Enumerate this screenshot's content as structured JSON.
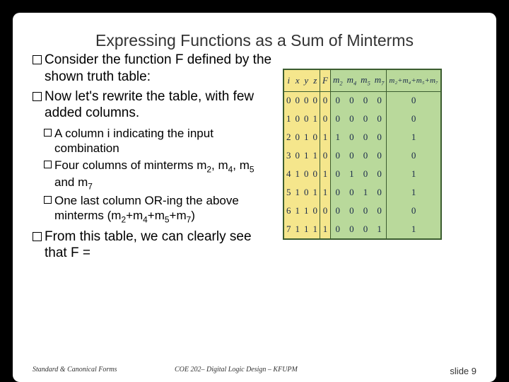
{
  "title": "Expressing Functions as a Sum of Minterms",
  "bullets": {
    "b1": "Consider the function F defined by the shown truth table:",
    "b2": "Now let's rewrite the table, with few added columns.",
    "sub1": "A column i indicating the input combination",
    "sub2_a": "Four columns of minterms m",
    "sub2_b": ", m",
    "sub2_c": ", m",
    "sub2_d": " and m",
    "sub3_a": "One last column OR-ing the above minterms (m",
    "sub3_b": "+m",
    "sub3_c": "+m",
    "sub3_d": "+m",
    "sub3_e": ")",
    "b3": "From this table, we can clearly see that F ="
  },
  "subscripts": {
    "s2": "2",
    "s4": "4",
    "s5": "5",
    "s7": "7"
  },
  "table": {
    "headers": {
      "i": "i",
      "x": "x",
      "y": "y",
      "z": "z",
      "F": "F",
      "m2": "m",
      "m4": "m",
      "m5": "m",
      "m7": "m",
      "sum": "m₂+m₄+m₅+m₇"
    },
    "rows": [
      {
        "i": "0",
        "x": "0",
        "y": "0",
        "z": "0",
        "F": "0",
        "m2": "0",
        "m4": "0",
        "m5": "0",
        "m7": "0",
        "sum": "0"
      },
      {
        "i": "1",
        "x": "0",
        "y": "0",
        "z": "1",
        "F": "0",
        "m2": "0",
        "m4": "0",
        "m5": "0",
        "m7": "0",
        "sum": "0"
      },
      {
        "i": "2",
        "x": "0",
        "y": "1",
        "z": "0",
        "F": "1",
        "m2": "1",
        "m4": "0",
        "m5": "0",
        "m7": "0",
        "sum": "1"
      },
      {
        "i": "3",
        "x": "0",
        "y": "1",
        "z": "1",
        "F": "0",
        "m2": "0",
        "m4": "0",
        "m5": "0",
        "m7": "0",
        "sum": "0"
      },
      {
        "i": "4",
        "x": "1",
        "y": "0",
        "z": "0",
        "F": "1",
        "m2": "0",
        "m4": "1",
        "m5": "0",
        "m7": "0",
        "sum": "1"
      },
      {
        "i": "5",
        "x": "1",
        "y": "0",
        "z": "1",
        "F": "1",
        "m2": "0",
        "m4": "0",
        "m5": "1",
        "m7": "0",
        "sum": "1"
      },
      {
        "i": "6",
        "x": "1",
        "y": "1",
        "z": "0",
        "F": "0",
        "m2": "0",
        "m4": "0",
        "m5": "0",
        "m7": "0",
        "sum": "0"
      },
      {
        "i": "7",
        "x": "1",
        "y": "1",
        "z": "1",
        "F": "1",
        "m2": "0",
        "m4": "0",
        "m5": "0",
        "m7": "1",
        "sum": "1"
      }
    ]
  },
  "footer": {
    "left": "Standard & Canonical Forms",
    "center": "COE 202– Digital Logic Design – KFUPM",
    "right": "slide 9"
  },
  "colors": {
    "bg": "#000000",
    "slide_bg": "#ffffff",
    "table_green": "#b9d99b",
    "table_yellow": "#f5e68c",
    "table_border": "#3b5c2f"
  }
}
